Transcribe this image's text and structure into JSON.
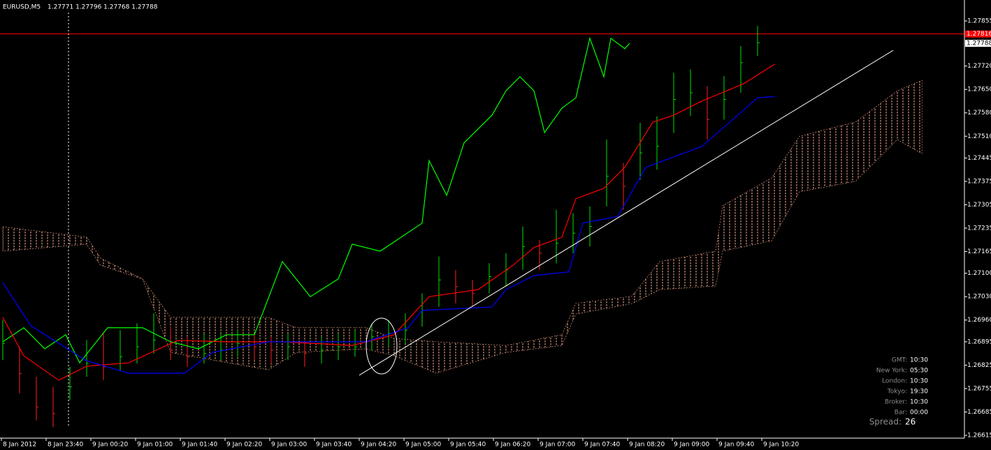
{
  "chart_data": {
    "type": "ohlc",
    "title": "EURUSD,M5",
    "header_quote": "1.27771 1.27796 1.27768 1.27788",
    "ylim": [
      1.26615,
      1.27855
    ],
    "yticks": [
      {
        "value": 1.27855,
        "label": "1.27855"
      },
      {
        "value": 1.2772,
        "label": "1.27720"
      },
      {
        "value": 1.2765,
        "label": "1.27650"
      },
      {
        "value": 1.2758,
        "label": "1.27580"
      },
      {
        "value": 1.2751,
        "label": "1.27510"
      },
      1.27445,
      1.27375,
      1.27305,
      1.27235,
      1.27165,
      {
        "value": 1.271,
        "label": "1.27100"
      },
      {
        "value": 1.2703,
        "label": "1.27030"
      },
      {
        "value": 1.2696,
        "label": "1.26960"
      },
      1.26895,
      1.26825,
      1.26755,
      1.26685,
      1.26615
    ],
    "xticks": [
      {
        "value": 0,
        "label": "8 Jan 2012"
      },
      {
        "value": 8,
        "label": "8 Jan 23:40"
      },
      {
        "value": 16,
        "label": "9 Jan 00:20"
      },
      {
        "value": 24,
        "label": "9 Jan 01:00"
      },
      {
        "value": 32,
        "label": "9 Jan 01:40"
      },
      {
        "value": 40,
        "label": "9 Jan 02:20"
      },
      {
        "value": 48,
        "label": "9 Jan 03:00"
      },
      {
        "value": 56,
        "label": "9 Jan 03:40"
      },
      {
        "value": 64,
        "label": "9 Jan 04:20"
      },
      {
        "value": 72,
        "label": "9 Jan 05:00"
      },
      {
        "value": 80,
        "label": "9 Jan 05:40"
      },
      {
        "value": 88,
        "label": "9 Jan 06:20"
      },
      {
        "value": 96,
        "label": "9 Jan 07:00"
      },
      {
        "value": 104,
        "label": "9 Jan 07:40"
      },
      {
        "value": 112,
        "label": "9 Jan 08:20"
      },
      {
        "value": 120,
        "label": "9 Jan 09:00"
      },
      {
        "value": 128,
        "label": "9 Jan 09:40"
      },
      {
        "value": 136,
        "label": "9 Jan 10:20"
      }
    ],
    "bars": {
      "x": [
        0,
        3,
        6,
        9,
        12,
        15,
        18,
        21,
        24,
        27,
        30,
        33,
        36,
        39,
        42,
        45,
        48,
        51,
        54,
        57,
        60,
        63,
        66,
        69,
        72,
        75,
        78,
        81,
        84,
        87,
        90,
        93,
        96,
        99,
        102,
        105,
        108,
        111,
        114,
        117,
        120,
        123,
        126,
        129,
        132,
        135
      ],
      "high": [
        1.2696,
        1.2688,
        1.2679,
        1.2676,
        1.2682,
        1.269,
        1.2692,
        1.2693,
        1.2695,
        1.2698,
        1.2694,
        1.2691,
        1.2692,
        1.2692,
        1.2693,
        1.2692,
        1.2691,
        1.2692,
        1.269,
        1.2691,
        1.2692,
        1.2693,
        1.2695,
        1.2696,
        1.2698,
        1.2704,
        1.2715,
        1.2711,
        1.2708,
        1.2713,
        1.2716,
        1.2724,
        1.272,
        1.2729,
        1.2728,
        1.273,
        1.275,
        1.2743,
        1.2755,
        1.2757,
        1.277,
        1.2771,
        1.2766,
        1.2769,
        1.2778,
        1.2784
      ],
      "low": [
        1.2684,
        1.2674,
        1.2666,
        1.2664,
        1.2672,
        1.2679,
        1.2678,
        1.2681,
        1.2683,
        1.2686,
        1.2684,
        1.2682,
        1.2683,
        1.2684,
        1.2685,
        1.2684,
        1.2683,
        1.2684,
        1.2682,
        1.2683,
        1.2684,
        1.2685,
        1.2687,
        1.2688,
        1.2689,
        1.2694,
        1.27,
        1.2701,
        1.27,
        1.2704,
        1.2706,
        1.2711,
        1.2711,
        1.2713,
        1.2716,
        1.2718,
        1.273,
        1.2729,
        1.2738,
        1.2741,
        1.2752,
        1.2757,
        1.275,
        1.2756,
        1.2764,
        1.2775
      ],
      "close": [
        1.2689,
        1.268,
        1.267,
        1.2668,
        1.2676,
        1.2683,
        1.2682,
        1.2685,
        1.2688,
        1.269,
        1.2687,
        1.2685,
        1.2686,
        1.2687,
        1.2689,
        1.2688,
        1.2687,
        1.2688,
        1.2686,
        1.2687,
        1.2688,
        1.2688,
        1.2691,
        1.2692,
        1.2693,
        1.2699,
        1.2708,
        1.2706,
        1.2704,
        1.2709,
        1.2711,
        1.2718,
        1.2716,
        1.2719,
        1.2722,
        1.2724,
        1.2739,
        1.2736,
        1.2746,
        1.2748,
        1.2762,
        1.2764,
        1.2756,
        1.2762,
        1.2773,
        1.2779
      ],
      "up_color": "#00e000",
      "down_color": "#ff2020"
    },
    "series": [
      {
        "color": "#00ff00",
        "x": [
          0,
          3.75,
          7.5,
          11.25,
          13.75,
          18.75,
          25,
          30,
          35,
          40,
          45,
          50,
          55,
          60,
          62.5,
          67.5,
          75,
          76.25,
          79.4,
          82.5,
          87.5,
          90,
          92.5,
          95,
          96.9,
          100,
          102.5,
          105,
          107.5,
          108.75,
          111.25,
          112.1
        ],
        "values": [
          1.26895,
          1.26937,
          1.26874,
          1.26916,
          1.26832,
          1.26937,
          1.26937,
          1.26895,
          1.26874,
          1.26916,
          1.26916,
          1.27135,
          1.2703,
          1.27083,
          1.27187,
          1.27166,
          1.2725,
          1.27437,
          1.27333,
          1.2749,
          1.27573,
          1.27646,
          1.27688,
          1.27646,
          1.27521,
          1.27594,
          1.27625,
          1.27803,
          1.27688,
          1.27803,
          1.27772,
          1.27788
        ]
      },
      {
        "color": "#ff0000",
        "x": [
          0,
          3.75,
          10,
          15,
          22.5,
          31.25,
          40,
          50,
          62.5,
          70,
          76.25,
          85,
          91.25,
          95,
          100,
          102.5,
          107.5,
          111.25,
          116.25,
          120,
          125,
          132.5,
          138.1
        ],
        "values": [
          1.26968,
          1.26853,
          1.2678,
          1.26822,
          1.26832,
          1.26899,
          1.26895,
          1.26895,
          1.26884,
          1.26916,
          1.2703,
          1.27051,
          1.27124,
          1.27177,
          1.27208,
          1.27323,
          1.27354,
          1.27417,
          1.27552,
          1.27573,
          1.27615,
          1.27667,
          1.27726
        ]
      },
      {
        "color": "#0000ff",
        "x": [
          0,
          5,
          15,
          22.5,
          32.5,
          37.5,
          47.5,
          65,
          72.5,
          75,
          87.5,
          90,
          95,
          101.25,
          103.75,
          110,
          115,
          120,
          125,
          130,
          135,
          138.1
        ],
        "values": [
          1.27072,
          1.26943,
          1.26838,
          1.26801,
          1.26801,
          1.26863,
          1.26895,
          1.26895,
          1.26937,
          1.26989,
          1.26999,
          1.27051,
          1.27093,
          1.27104,
          1.2725,
          1.2727,
          1.27417,
          1.27448,
          1.27479,
          1.27552,
          1.27625,
          1.27629
        ]
      }
    ],
    "cloud": {
      "color": "#ffb090",
      "x": [
        0,
        15,
        17.5,
        25,
        30,
        47.5,
        52.5,
        65,
        70,
        77.5,
        90,
        100,
        102.5,
        112.5,
        117.5,
        127.5,
        128.75,
        137.5,
        142.5,
        152.5,
        160,
        164.4
      ],
      "upper": [
        1.27239,
        1.27208,
        1.27145,
        1.27083,
        1.26968,
        1.26968,
        1.26937,
        1.26937,
        1.26905,
        1.26895,
        1.26884,
        1.26916,
        1.2701,
        1.27031,
        1.27135,
        1.27166,
        1.27302,
        1.27385,
        1.2751,
        1.27552,
        1.27646,
        1.27677
      ],
      "lower": [
        1.27166,
        1.27187,
        1.27124,
        1.27083,
        1.26863,
        1.26811,
        1.26863,
        1.26874,
        1.26853,
        1.26801,
        1.26863,
        1.26884,
        1.26978,
        1.27009,
        1.27051,
        1.27062,
        1.27166,
        1.27197,
        1.27344,
        1.27375,
        1.275,
        1.27458
      ]
    },
    "level": {
      "value": 1.27816,
      "label": "1.27816",
      "color": "#ff0000"
    },
    "current_price": {
      "value": 1.27788,
      "label": "1.27788"
    },
    "trendline": {
      "x": [
        63.75,
        159.25
      ],
      "values": [
        1.26795,
        1.27767
      ],
      "color": "#ffffff"
    },
    "info_panel": [
      [
        "GMT:",
        "10:30"
      ],
      [
        "New York:",
        "05:30"
      ],
      [
        "London:",
        "10:30"
      ],
      [
        "Tokyo:",
        "19:30"
      ],
      [
        "Broker:",
        "10:30"
      ],
      [
        "Bar:",
        "00:00"
      ]
    ],
    "spread": [
      "Spread:",
      "26"
    ]
  }
}
